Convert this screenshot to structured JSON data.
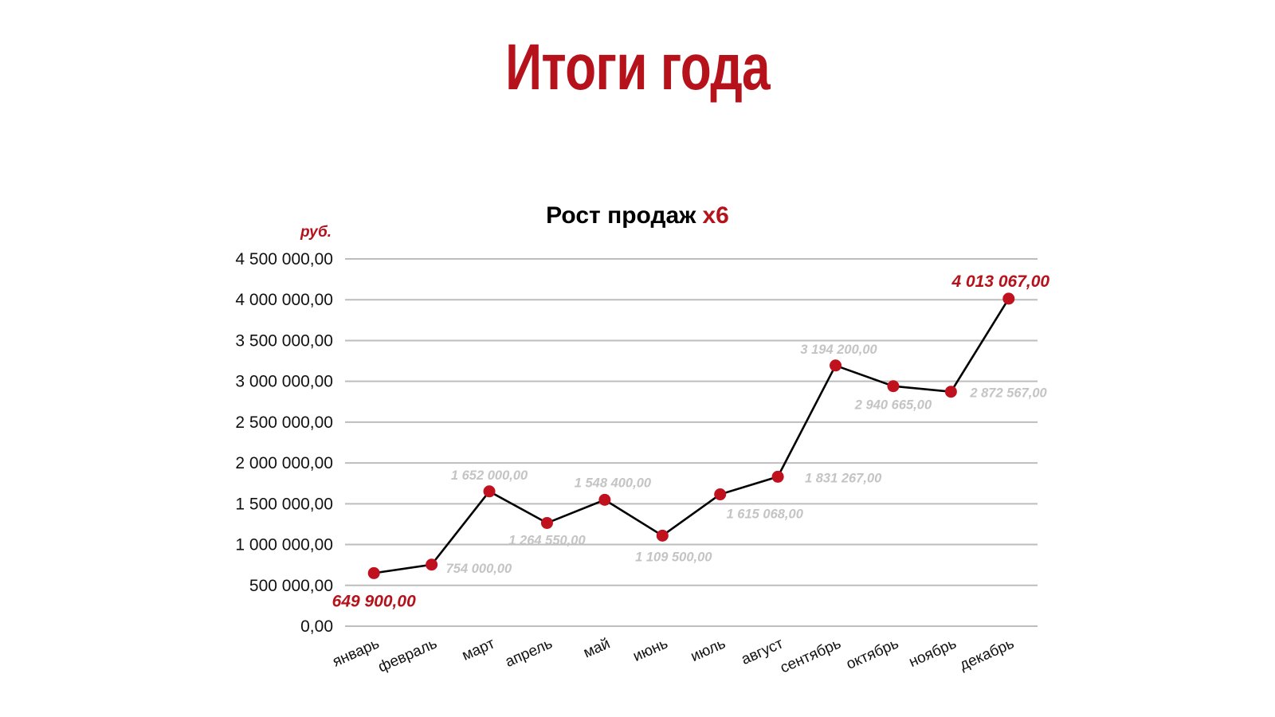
{
  "page": {
    "title": "Итоги года"
  },
  "chart_data": {
    "type": "line",
    "title": "Рост продаж",
    "title_accent": "x6",
    "y_unit": "руб.",
    "xlabel": "",
    "ylabel": "",
    "ylim": [
      0,
      4500000
    ],
    "y_ticks": [
      0,
      500000,
      1000000,
      1500000,
      2000000,
      2500000,
      3000000,
      3500000,
      4000000,
      4500000
    ],
    "y_tick_labels": [
      "0,00",
      "500 000,00",
      "1 000 000,00",
      "1 500 000,00",
      "2 000 000,00",
      "2 500 000,00",
      "3 000 000,00",
      "3 500 000,00",
      "4 000 000,00",
      "4 500 000,00"
    ],
    "categories": [
      "январь",
      "февраль",
      "март",
      "апрель",
      "май",
      "июнь",
      "июль",
      "август",
      "сентябрь",
      "октябрь",
      "ноябрь",
      "декабрь"
    ],
    "series": [
      {
        "values": [
          649900,
          754000,
          1652000,
          1264550,
          1548400,
          1109500,
          1615068,
          1831267,
          3194200,
          2940665,
          2872567,
          4013067
        ],
        "value_labels": [
          "649 900,00",
          "754 000,00",
          "1 652 000,00",
          "1 264 550,00",
          "1 548 400,00",
          "1 109 500,00",
          "1 615 068,00",
          "1 831 267,00",
          "3 194 200,00",
          "2 940 665,00",
          "2 872 567,00",
          "4 013 067,00"
        ],
        "line_color": "#000000",
        "marker_color": "#c0111f",
        "highlighted_points": [
          0,
          11
        ],
        "highlight_color": "#b5121b",
        "label_color": "#c4c4c4"
      }
    ],
    "grid": true,
    "legend": "none"
  }
}
